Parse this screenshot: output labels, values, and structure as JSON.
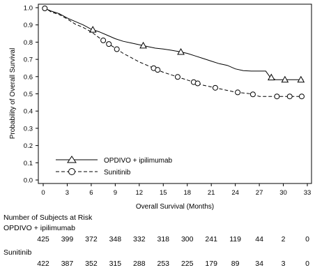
{
  "chart_data": {
    "type": "line",
    "title": "",
    "xlabel": "Overall Survival (Months)",
    "ylabel": "Probability of Overall Survival",
    "xlim": [
      0,
      33
    ],
    "ylim": [
      0,
      1
    ],
    "x_ticks": [
      "0",
      "3",
      "6",
      "9",
      "12",
      "15",
      "18",
      "21",
      "24",
      "27",
      "30",
      "33"
    ],
    "y_ticks": [
      "0.0",
      "0.1",
      "0.2",
      "0.3",
      "0.4",
      "0.5",
      "0.6",
      "0.7",
      "0.8",
      "0.9",
      "1.0"
    ],
    "legend_position": "bottom-left",
    "series": [
      {
        "name": "OPDIVO + ipilimumab",
        "line_style": "solid",
        "marker": "triangle",
        "x": [
          0,
          0.5,
          1,
          2,
          3,
          4,
          5,
          6,
          7,
          8,
          9,
          10,
          11,
          12,
          13,
          14,
          15,
          16,
          17,
          18,
          19,
          20,
          21,
          22,
          23,
          24,
          25,
          26,
          27,
          27.8,
          28.3,
          29,
          30,
          31,
          32.5
        ],
        "y": [
          1.0,
          0.99,
          0.98,
          0.965,
          0.94,
          0.92,
          0.9,
          0.875,
          0.86,
          0.84,
          0.82,
          0.805,
          0.795,
          0.785,
          0.775,
          0.765,
          0.76,
          0.753,
          0.745,
          0.735,
          0.72,
          0.705,
          0.69,
          0.675,
          0.665,
          0.645,
          0.635,
          0.632,
          0.632,
          0.632,
          0.6,
          0.582,
          0.582,
          0.582,
          0.582
        ],
        "marker_x": [
          6.2,
          12.5,
          17.2,
          28.5,
          30.2,
          32.2
        ]
      },
      {
        "name": "Sunitinib",
        "line_style": "dashed",
        "marker": "circle",
        "x": [
          0,
          0.5,
          1,
          2,
          3,
          4,
          5,
          6,
          7,
          8,
          9,
          10,
          11,
          12,
          13,
          14,
          15,
          16,
          17,
          18,
          19,
          20,
          21,
          22,
          23,
          24,
          25,
          26,
          27,
          28,
          29,
          30,
          31,
          32.5
        ],
        "y": [
          1.0,
          0.99,
          0.975,
          0.96,
          0.935,
          0.905,
          0.885,
          0.86,
          0.825,
          0.795,
          0.765,
          0.735,
          0.71,
          0.685,
          0.665,
          0.645,
          0.625,
          0.61,
          0.595,
          0.58,
          0.565,
          0.55,
          0.54,
          0.53,
          0.52,
          0.51,
          0.505,
          0.5,
          0.485,
          0.485,
          0.485,
          0.485,
          0.485,
          0.485
        ],
        "marker_x": [
          0.2,
          7.5,
          8.2,
          9.2,
          13.8,
          14.3,
          16.8,
          18.8,
          19.3,
          21.5,
          24.3,
          26.2,
          29.2,
          30.8,
          32.3
        ]
      }
    ],
    "at_risk": {
      "title": "Number of Subjects at Risk",
      "groups": [
        {
          "name": "OPDIVO + ipilimumab",
          "counts": [
            "425",
            "399",
            "372",
            "348",
            "332",
            "318",
            "300",
            "241",
            "119",
            "44",
            "2",
            "0"
          ]
        },
        {
          "name": "Sunitinib",
          "counts": [
            "422",
            "387",
            "352",
            "315",
            "288",
            "253",
            "225",
            "179",
            "89",
            "34",
            "3",
            "0"
          ]
        }
      ]
    }
  }
}
